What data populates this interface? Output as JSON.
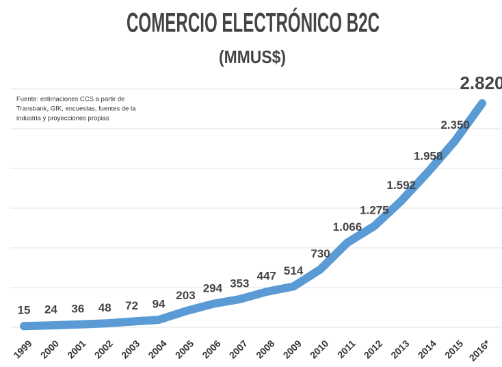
{
  "chart_data": {
    "type": "line",
    "title": "COMERCIO ELECTRÓNICO B2C",
    "subtitle": "(MMUS$)",
    "note": [
      "Fuente: estimaciones CCS a partir de",
      "Transbank, GfK, encuestas, fuentes de la",
      "industria y proyecciones propias"
    ],
    "categories": [
      "1999",
      "2000",
      "2001",
      "2002",
      "2003",
      "2004",
      "2005",
      "2006",
      "2007",
      "2008",
      "2009",
      "2010",
      "2011",
      "2012",
      "2013",
      "2014",
      "2015",
      "2016*"
    ],
    "series": [
      {
        "name": "B2C",
        "color": "#5b9bd5",
        "values": [
          15,
          24,
          36,
          48,
          72,
          94,
          203,
          294,
          353,
          447,
          514,
          730,
          1066,
          1275,
          1592,
          1958,
          2350,
          2820
        ],
        "value_labels": [
          "15",
          "24",
          "36",
          "48",
          "72",
          "94",
          "203",
          "294",
          "353",
          "447",
          "514",
          "730",
          "1.066",
          "1.275",
          "1.592",
          "1.958",
          "2.350",
          "2.820"
        ]
      }
    ],
    "ylim": [
      0,
      3000
    ],
    "yticks": [
      0,
      500,
      1000,
      1500,
      2000,
      2500,
      3000
    ],
    "grid": true
  }
}
